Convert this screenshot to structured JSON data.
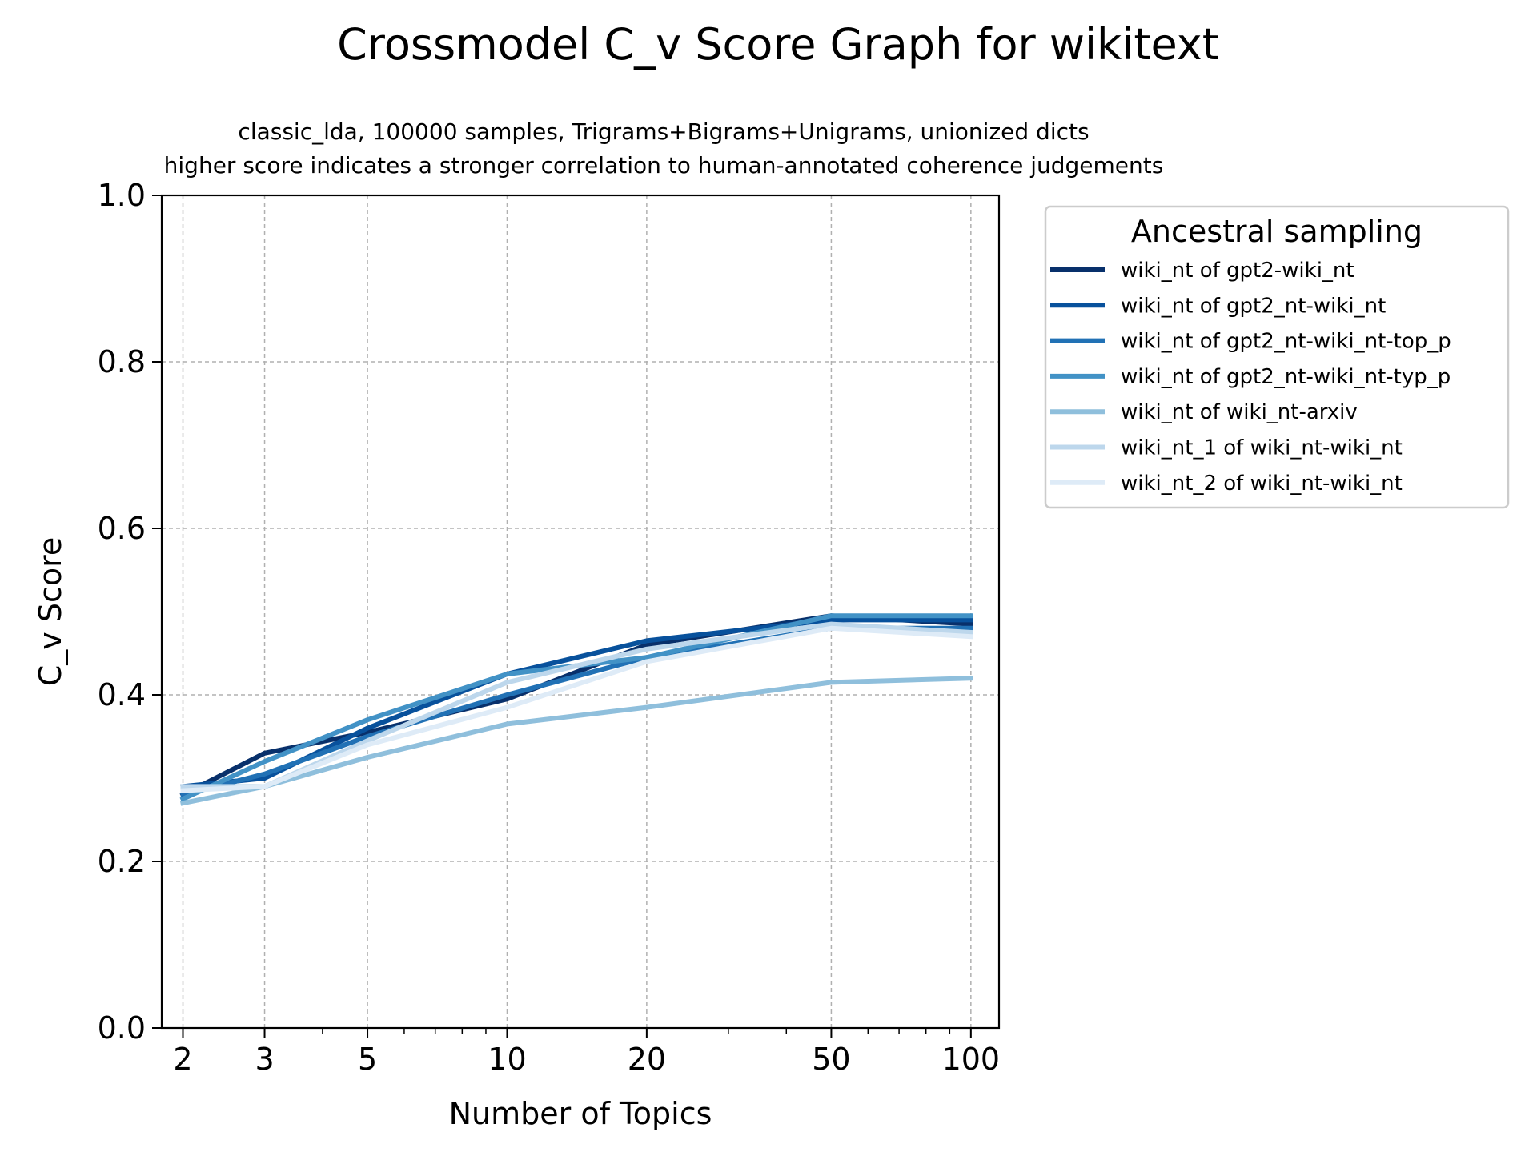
{
  "chart_data": {
    "type": "line",
    "title": "Crossmodel C_v Score Graph for wikitext",
    "subtitle_lines": [
      "classic_lda, 100000 samples, Trigrams+Bigrams+Unigrams, unionized dicts",
      "higher score indicates a stronger correlation to human-annotated coherence judgements"
    ],
    "xlabel": "Number of Topics",
    "ylabel": "C_v Score",
    "x_scale": "log",
    "x": [
      2,
      3,
      5,
      10,
      20,
      50,
      100
    ],
    "x_tick_labels": [
      "2",
      "3",
      "5",
      "10",
      "20",
      "50",
      "100"
    ],
    "ylim": [
      0.0,
      1.0
    ],
    "y_ticks": [
      0.0,
      0.2,
      0.4,
      0.6,
      0.8,
      1.0
    ],
    "y_tick_labels": [
      "0.0",
      "0.2",
      "0.4",
      "0.6",
      "0.8",
      "1.0"
    ],
    "grid": true,
    "legend": {
      "title": "Ancestral sampling",
      "placement": "outside-right-top"
    },
    "series": [
      {
        "name": "wiki_nt of gpt2-wiki_nt",
        "color": "#08306b",
        "values": [
          0.28,
          0.33,
          0.355,
          0.395,
          0.46,
          0.495,
          0.485
        ]
      },
      {
        "name": "wiki_nt of gpt2_nt-wiki_nt",
        "color": "#08519c",
        "values": [
          0.29,
          0.3,
          0.36,
          0.425,
          0.465,
          0.49,
          0.49
        ]
      },
      {
        "name": "wiki_nt of gpt2_nt-wiki_nt-top_p",
        "color": "#2171b5",
        "values": [
          0.28,
          0.305,
          0.35,
          0.4,
          0.445,
          0.48,
          0.48
        ]
      },
      {
        "name": "wiki_nt of gpt2_nt-wiki_nt-typ_p",
        "color": "#4292c6",
        "values": [
          0.275,
          0.32,
          0.37,
          0.425,
          0.445,
          0.495,
          0.495
        ]
      },
      {
        "name": "wiki_nt of wiki_nt-arxiv",
        "color": "#8fbfdc",
        "values": [
          0.27,
          0.29,
          0.325,
          0.365,
          0.385,
          0.415,
          0.42
        ]
      },
      {
        "name": "wiki_nt_1 of wiki_nt-wiki_nt",
        "color": "#bdd7ec",
        "values": [
          0.29,
          0.29,
          0.345,
          0.415,
          0.455,
          0.485,
          0.475
        ]
      },
      {
        "name": "wiki_nt_2 of wiki_nt-wiki_nt",
        "color": "#deebf7",
        "values": [
          0.285,
          0.29,
          0.34,
          0.385,
          0.44,
          0.48,
          0.47
        ]
      }
    ]
  }
}
